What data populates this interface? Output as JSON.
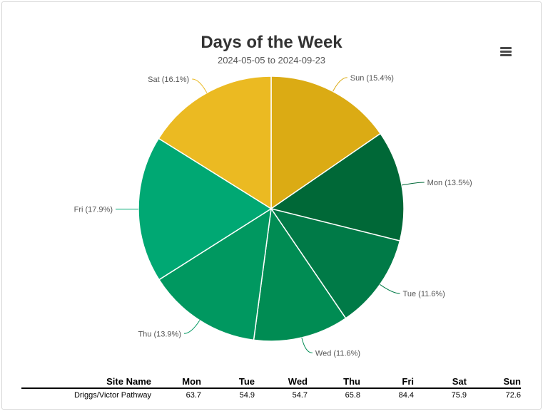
{
  "title": "Days of the Week",
  "subtitle": "2024-05-05 to 2024-09-23",
  "menu_icon": "hamburger-menu-icon",
  "chart_data": {
    "type": "pie",
    "title": "Days of the Week",
    "subtitle": "2024-05-05 to 2024-09-23",
    "slices": [
      {
        "name": "Sun",
        "percent": 15.4,
        "label": "Sun (15.4%)",
        "color": "#dbab14"
      },
      {
        "name": "Mon",
        "percent": 13.5,
        "label": "Mon (13.5%)",
        "color": "#006837"
      },
      {
        "name": "Tue",
        "percent": 11.6,
        "label": "Tue (11.6%)",
        "color": "#007a47"
      },
      {
        "name": "Wed",
        "percent": 11.6,
        "label": "Wed (11.6%)",
        "color": "#008c53"
      },
      {
        "name": "Thu",
        "percent": 13.9,
        "label": "Thu (13.9%)",
        "color": "#009860"
      },
      {
        "name": "Fri",
        "percent": 17.9,
        "label": "Fri (17.9%)",
        "color": "#00a873"
      },
      {
        "name": "Sat",
        "percent": 16.1,
        "label": "Sat (16.1%)",
        "color": "#ebba22"
      }
    ]
  },
  "table": {
    "headers": [
      "Site Name",
      "Mon",
      "Tue",
      "Wed",
      "Thu",
      "Fri",
      "Sat",
      "Sun"
    ],
    "rows": [
      [
        "Driggs/Victor Pathway",
        "63.7",
        "54.9",
        "54.7",
        "65.8",
        "84.4",
        "75.9",
        "72.6"
      ]
    ]
  }
}
